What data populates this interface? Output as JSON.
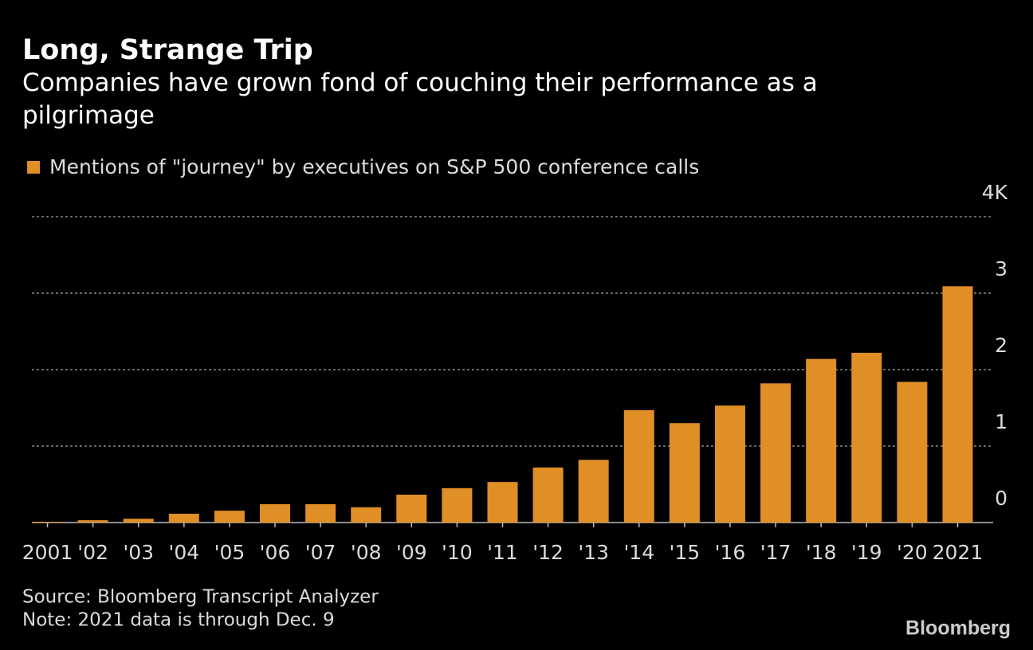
{
  "chart_data": {
    "type": "bar",
    "title": "Long, Strange Trip",
    "subtitle": "Companies have grown fond of couching their performance as a pilgrimage",
    "categories": [
      "2001",
      "'02",
      "'03",
      "'04",
      "'05",
      "'06",
      "'07",
      "'08",
      "'09",
      "'10",
      "'11",
      "'12",
      "'13",
      "'14",
      "'15",
      "'16",
      "'17",
      "'18",
      "'19",
      "'20",
      "2021"
    ],
    "series": [
      {
        "name": "Mentions of \"journey\" by executives on S&P 500 conference calls",
        "color": "#e08e26",
        "values": [
          0.01,
          0.03,
          0.05,
          0.115,
          0.155,
          0.24,
          0.24,
          0.2,
          0.365,
          0.45,
          0.53,
          0.72,
          0.82,
          1.47,
          1.3,
          1.53,
          1.82,
          2.14,
          2.22,
          1.84,
          3.09
        ]
      }
    ],
    "ylim": [
      0,
      4
    ],
    "yticks": [
      0,
      1,
      2,
      3,
      {
        "value": 4,
        "label": "4K"
      }
    ],
    "grid": true,
    "source": "Source: Bloomberg Transcript Analyzer",
    "note": "Note: 2021 data is through Dec. 9",
    "brand": "Bloomberg"
  }
}
